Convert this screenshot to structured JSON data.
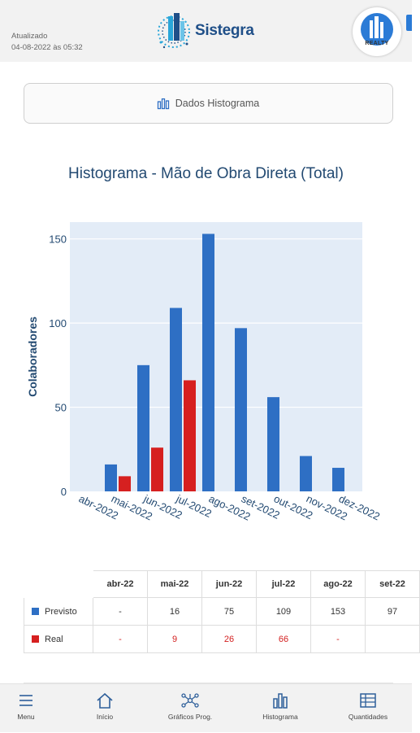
{
  "header": {
    "updated_label": "Atualizado",
    "updated_time": "04-08-2022 às 05:32",
    "logo_text": "Sistegra",
    "partner_logo_text": "REALTY"
  },
  "data_button": {
    "label": "Dados Histograma",
    "icon": "bar-chart-icon"
  },
  "chart_data": {
    "type": "bar",
    "title": "Histograma - Mão de Obra Direta (Total)",
    "ylabel": "Colaboradores",
    "xlabel": "",
    "ylim": [
      0,
      160
    ],
    "yticks": [
      0,
      50,
      100,
      150
    ],
    "grid": true,
    "background": "#e3ecf7",
    "categories": [
      "abr-2022",
      "mai-2022",
      "jun-2022",
      "jul-2022",
      "ago-2022",
      "set-2022",
      "out-2022",
      "nov-2022",
      "dez-2022"
    ],
    "series": [
      {
        "name": "Previsto",
        "color": "#2e6fc4",
        "values": [
          null,
          16,
          75,
          109,
          153,
          97,
          56,
          21,
          14
        ]
      },
      {
        "name": "Real",
        "color": "#d62020",
        "values": [
          null,
          9,
          26,
          66,
          null,
          null,
          null,
          null,
          null
        ]
      }
    ]
  },
  "table": {
    "columns": [
      "abr-22",
      "mai-22",
      "jun-22",
      "jul-22",
      "ago-22",
      "set-22"
    ],
    "rows": [
      {
        "label": "Previsto",
        "color": "#2e6fc4",
        "values": [
          "-",
          "16",
          "75",
          "109",
          "153",
          "97"
        ]
      },
      {
        "label": "Real",
        "color": "#d62020",
        "values": [
          "-",
          "9",
          "26",
          "66",
          "-",
          ""
        ]
      }
    ]
  },
  "nav": {
    "items": [
      {
        "label": "Menu",
        "icon": "hamburger-icon"
      },
      {
        "label": "Início",
        "icon": "home-icon"
      },
      {
        "label": "Gráficos Prog.",
        "icon": "network-icon"
      },
      {
        "label": "Histograma",
        "icon": "bar-chart-icon"
      },
      {
        "label": "Quantidades",
        "icon": "table-icon"
      }
    ]
  }
}
